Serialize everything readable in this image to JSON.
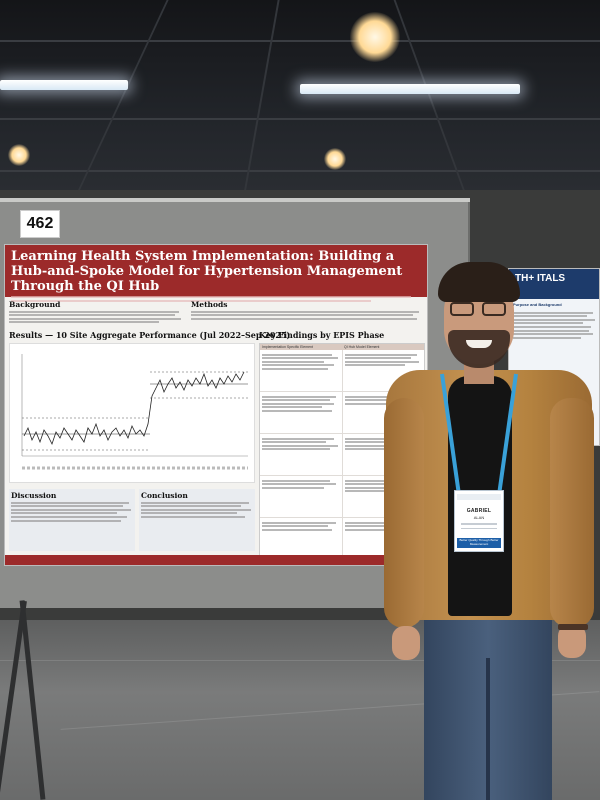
{
  "booth": {
    "number": "462"
  },
  "poster": {
    "title": "Learning Health System Implementation: Building a Hub-and-Spoke Model for Hypertension Management Through the QI Hub",
    "sections": {
      "background": "Background",
      "methods": "Methods",
      "results": "Results — 10 Site Aggregate Performance (Jul 2022–Sep 2025)",
      "findings": "Key Findings by EPIS Phase",
      "discussion": "Discussion",
      "conclusion": "Conclusion"
    },
    "table_headers": [
      "Implementation Specific Element",
      "QI Hub Model Element"
    ],
    "colors": {
      "header": "#9c2a2a",
      "text_line": "#9a9a9a"
    }
  },
  "neighbor_poster": {
    "title_fragment": "TH+ ITALS",
    "section": "Purpose and Background"
  },
  "badge": {
    "first_name": "GABRIEL",
    "last_name": "ALAN",
    "footer": "Better Quality Through Better Measurement"
  }
}
